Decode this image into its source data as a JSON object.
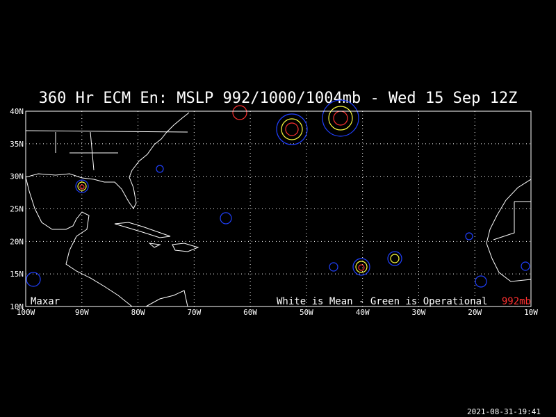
{
  "header": {
    "title": "360 Hr ECM En: MSLP 992/1000/1004mb - Wed 15 Sep 12Z"
  },
  "map": {
    "lon_labels": [
      "100W",
      "90W",
      "80W",
      "70W",
      "60W",
      "50W",
      "40W",
      "30W",
      "20W",
      "10W"
    ],
    "lat_labels": [
      "40N",
      "35N",
      "30N",
      "25N",
      "20N",
      "15N",
      "10N"
    ],
    "watermark": "Maxar",
    "legend_mean": "White is Mean - Green is Operational",
    "legend_red": "992mb"
  },
  "footer": {
    "timestamp": "2021-08-31-19:41"
  }
}
